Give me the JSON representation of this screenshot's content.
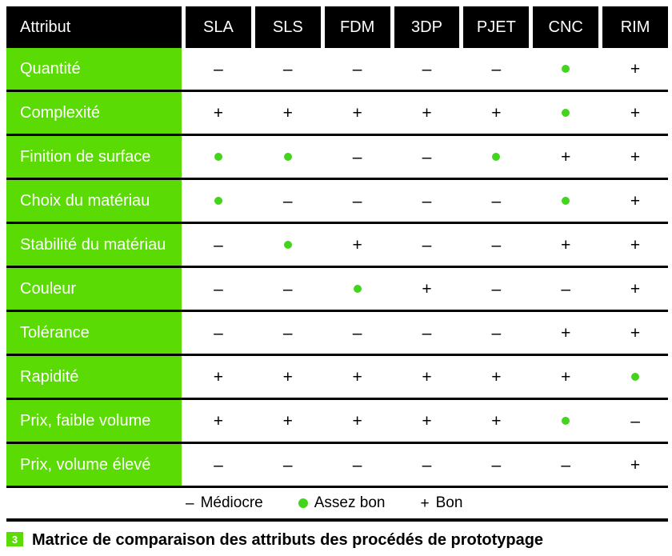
{
  "colors": {
    "green": "#5bdb04",
    "dot_green": "#43d41c",
    "header_bg": "#000000",
    "header_text": "#ffffff",
    "symbol_color": "#000000"
  },
  "table": {
    "header": [
      "Attribut",
      "SLA",
      "SLS",
      "FDM",
      "3DP",
      "PJET",
      "CNC",
      "RIM"
    ],
    "rows": [
      {
        "label": "Quantité",
        "values": [
          "minus",
          "minus",
          "minus",
          "minus",
          "minus",
          "dot",
          "plus"
        ]
      },
      {
        "label": "Complexité",
        "values": [
          "plus",
          "plus",
          "plus",
          "plus",
          "plus",
          "dot",
          "plus"
        ]
      },
      {
        "label": "Finition de surface",
        "values": [
          "dot",
          "dot",
          "minus",
          "minus",
          "dot",
          "plus",
          "plus"
        ]
      },
      {
        "label": "Choix du matériau",
        "values": [
          "dot",
          "minus",
          "minus",
          "minus",
          "minus",
          "dot",
          "plus"
        ]
      },
      {
        "label": "Stabilité du matériau",
        "values": [
          "minus",
          "dot",
          "plus",
          "minus",
          "minus",
          "plus",
          "plus"
        ]
      },
      {
        "label": "Couleur",
        "values": [
          "minus",
          "minus",
          "dot",
          "plus",
          "minus",
          "minus",
          "plus"
        ]
      },
      {
        "label": "Tolérance",
        "values": [
          "minus",
          "minus",
          "minus",
          "minus",
          "minus",
          "plus",
          "plus"
        ]
      },
      {
        "label": "Rapidité",
        "values": [
          "plus",
          "plus",
          "plus",
          "plus",
          "plus",
          "plus",
          "dot"
        ]
      },
      {
        "label": "Prix, faible volume",
        "values": [
          "plus",
          "plus",
          "plus",
          "plus",
          "plus",
          "dot",
          "minus"
        ]
      },
      {
        "label": "Prix, volume élevé",
        "values": [
          "minus",
          "minus",
          "minus",
          "minus",
          "minus",
          "minus",
          "plus"
        ]
      }
    ],
    "symbols": {
      "minus": "–",
      "plus": "+",
      "dot": "●"
    }
  },
  "legend": {
    "items": [
      {
        "symbol": "minus",
        "label": "Médiocre"
      },
      {
        "symbol": "dot",
        "label": "Assez bon"
      },
      {
        "symbol": "plus",
        "label": "Bon"
      }
    ]
  },
  "caption": {
    "number": "3",
    "text": "Matrice de comparaison des attributs des procédés de prototypage"
  }
}
